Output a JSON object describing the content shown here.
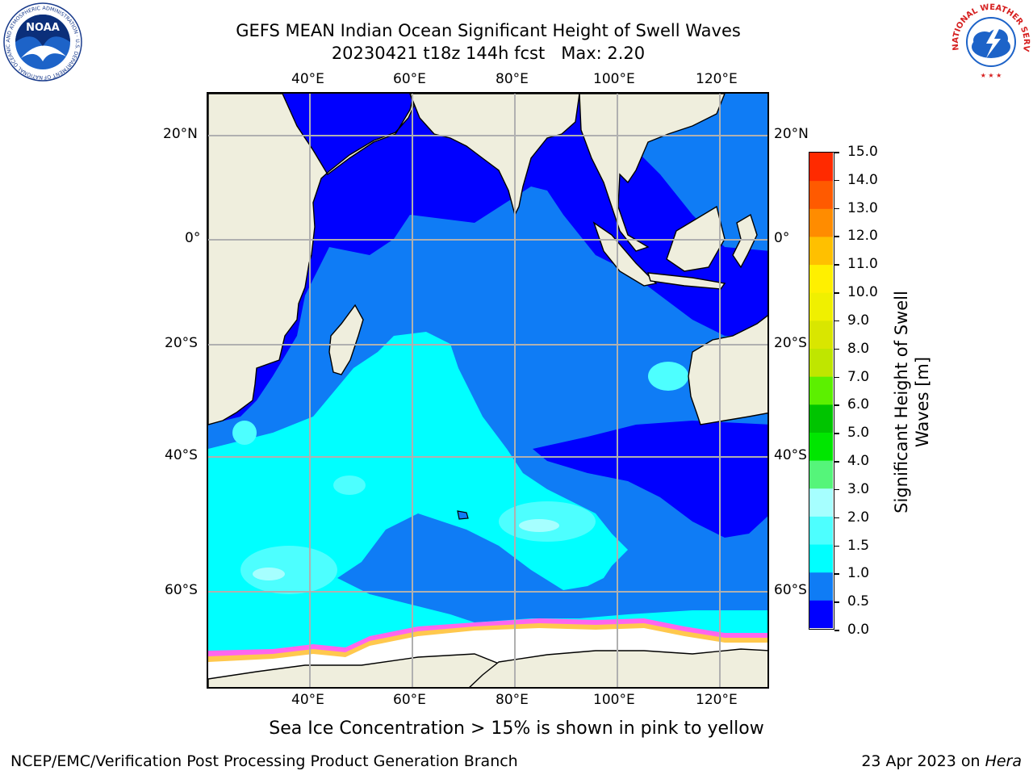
{
  "title": {
    "line1": "GEFS MEAN Indian Ocean Significant Height of Swell Waves",
    "line2": "20230421 t18z 144h fcst   Max: 2.20"
  },
  "map": {
    "lon_labels": [
      "40°E",
      "60°E",
      "80°E",
      "100°E",
      "120°E"
    ],
    "lat_labels_left": [
      "20°N",
      "0°",
      "20°S",
      "40°S",
      "60°S"
    ],
    "lat_labels_right": [
      "20°N",
      "0°",
      "20°S",
      "40°S",
      "60°S"
    ],
    "colors": {
      "land": "#efeedd",
      "ice": "#ffffff",
      "grid": "#b0b0b0",
      "coast": "#000000"
    }
  },
  "colorbar": {
    "label": "Significant Height of Swell Waves [m]",
    "ticks": [
      "15.0",
      "14.0",
      "13.0",
      "12.0",
      "11.0",
      "10.0",
      "9.0",
      "8.0",
      "7.0",
      "6.0",
      "5.0",
      "4.0",
      "3.0",
      "2.0",
      "1.5",
      "1.0",
      "0.5",
      "0.0"
    ],
    "colors": [
      "#0000ff",
      "#0f7cf5",
      "#00ffff",
      "#4dffff",
      "#a6ffff",
      "#55f57a",
      "#00e600",
      "#00c400",
      "#5cf000",
      "#bfe600",
      "#d9e600",
      "#f0f000",
      "#fff000",
      "#ffc000",
      "#ff8c00",
      "#ff5a00",
      "#ff2a00",
      "#ff0000"
    ]
  },
  "caption": "Sea Ice Concentration > 15% is shown in pink to yellow",
  "footer": {
    "left": "NCEP/EMC/Verification Post Processing Product Generation Branch",
    "right_prefix": "23 Apr 2023 on ",
    "right_host": "Hera"
  },
  "logos": {
    "noaa": "NOAA",
    "noaa_ring": "NATIONAL OCEANIC AND ATMOSPHERIC ADMINISTRATION · U.S. DEPARTMENT OF COMMERCE",
    "nws_ring": "NATIONAL WEATHER SERVICE"
  }
}
